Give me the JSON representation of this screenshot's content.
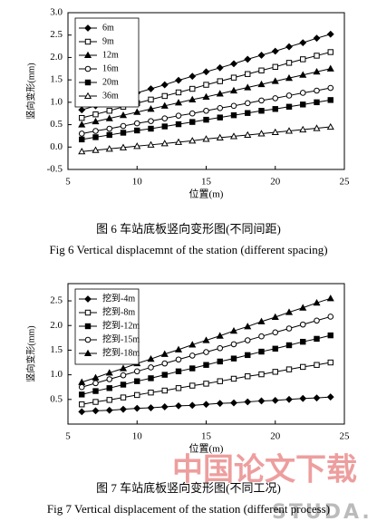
{
  "chart_data": [
    {
      "type": "line",
      "caption": "图 6  车站底板竖向变形图(不同间距)",
      "caption_en": "Fig 6  Vertical displacemnt of the station (different spacing)",
      "x_label": "位置(m)",
      "y_label": "竖向变形(mm)",
      "x": [
        6,
        7,
        8,
        9,
        10,
        11,
        12,
        13,
        14,
        15,
        16,
        17,
        18,
        19,
        20,
        21,
        22,
        23,
        24
      ],
      "xlim": [
        5,
        25
      ],
      "xticks": [
        5,
        10,
        15,
        20,
        25
      ],
      "ylim": [
        -0.5,
        3.0
      ],
      "yticks": [
        {
          "value": -0.5,
          "label": "-0.5"
        },
        {
          "value": 0,
          "label": "0.0"
        },
        {
          "value": 0.5,
          "label": "0.5"
        },
        {
          "value": 1,
          "label": "1.0"
        },
        {
          "value": 1.5,
          "label": "1.5"
        },
        {
          "value": 2,
          "label": "2.0"
        },
        {
          "value": 2.5,
          "label": "2.5"
        },
        {
          "value": 3,
          "label": "3.0"
        }
      ],
      "legend": "upper left",
      "series": [
        {
          "name": "6m",
          "color": "#000000",
          "marker": "diamond",
          "values": [
            0.83,
            0.92,
            1.02,
            1.11,
            1.21,
            1.3,
            1.39,
            1.49,
            1.58,
            1.68,
            1.77,
            1.86,
            1.96,
            2.05,
            2.14,
            2.24,
            2.33,
            2.43,
            2.52
          ]
        },
        {
          "name": "9m",
          "color": "#000000",
          "marker": "square-open",
          "values": [
            0.65,
            0.73,
            0.81,
            0.9,
            0.98,
            1.06,
            1.14,
            1.22,
            1.3,
            1.39,
            1.47,
            1.55,
            1.63,
            1.71,
            1.79,
            1.88,
            1.96,
            2.04,
            2.12
          ]
        },
        {
          "name": "12m",
          "color": "#000000",
          "marker": "triangle",
          "values": [
            0.5,
            0.57,
            0.64,
            0.71,
            0.78,
            0.85,
            0.92,
            0.99,
            1.06,
            1.12,
            1.19,
            1.26,
            1.33,
            1.4,
            1.47,
            1.54,
            1.61,
            1.68,
            1.75
          ]
        },
        {
          "name": "16m",
          "color": "#000000",
          "marker": "circle-open",
          "values": [
            0.3,
            0.36,
            0.41,
            0.47,
            0.53,
            0.58,
            0.64,
            0.7,
            0.75,
            0.81,
            0.87,
            0.92,
            0.98,
            1.04,
            1.09,
            1.15,
            1.21,
            1.26,
            1.32
          ]
        },
        {
          "name": "20m",
          "color": "#000000",
          "marker": "square",
          "values": [
            0.17,
            0.22,
            0.27,
            0.32,
            0.37,
            0.41,
            0.46,
            0.51,
            0.56,
            0.61,
            0.66,
            0.71,
            0.76,
            0.81,
            0.85,
            0.9,
            0.95,
            1.0,
            1.05
          ]
        },
        {
          "name": "36m",
          "color": "#000000",
          "marker": "triangle-open",
          "values": [
            -0.1,
            -0.07,
            -0.04,
            -0.01,
            0.02,
            0.05,
            0.08,
            0.11,
            0.14,
            0.18,
            0.21,
            0.24,
            0.27,
            0.3,
            0.33,
            0.36,
            0.39,
            0.42,
            0.45
          ]
        }
      ]
    },
    {
      "type": "line",
      "caption": "图 7  车站底板竖向变形图(不同工况)",
      "caption_en": "Fig 7  Vertical displacement of the station (different process)",
      "x_label": "位置(m)",
      "y_label": "竖向变形(mm)",
      "x": [
        6,
        7,
        8,
        9,
        10,
        11,
        12,
        13,
        14,
        15,
        16,
        17,
        18,
        19,
        20,
        21,
        22,
        23,
        24
      ],
      "xlim": [
        5,
        25
      ],
      "xticks": [
        5,
        10,
        15,
        20,
        25
      ],
      "ylim": [
        0,
        2.85
      ],
      "yticks": [
        0.5,
        {
          "value": 1,
          "label": "1.0"
        },
        1.5,
        {
          "value": 2,
          "label": "2.0"
        },
        2.5
      ],
      "legend": "upper left",
      "series": [
        {
          "name": "挖到-4m",
          "color": "#000000",
          "marker": "diamond",
          "values": [
            0.25,
            0.27,
            0.28,
            0.3,
            0.32,
            0.33,
            0.35,
            0.37,
            0.38,
            0.4,
            0.42,
            0.43,
            0.45,
            0.47,
            0.48,
            0.5,
            0.52,
            0.53,
            0.55
          ]
        },
        {
          "name": "挖到-8m",
          "color": "#000000",
          "marker": "square-open",
          "values": [
            0.4,
            0.45,
            0.49,
            0.54,
            0.59,
            0.64,
            0.68,
            0.73,
            0.78,
            0.82,
            0.87,
            0.92,
            0.97,
            1.01,
            1.06,
            1.11,
            1.16,
            1.2,
            1.25
          ]
        },
        {
          "name": "挖到-12m",
          "color": "#000000",
          "marker": "square",
          "values": [
            0.6,
            0.67,
            0.73,
            0.8,
            0.87,
            0.93,
            1.0,
            1.07,
            1.13,
            1.2,
            1.27,
            1.33,
            1.4,
            1.47,
            1.53,
            1.6,
            1.67,
            1.73,
            1.8
          ]
        },
        {
          "name": "挖到-15m",
          "color": "#000000",
          "marker": "circle-open",
          "values": [
            0.75,
            0.83,
            0.91,
            0.99,
            1.07,
            1.15,
            1.23,
            1.31,
            1.39,
            1.46,
            1.54,
            1.62,
            1.7,
            1.78,
            1.86,
            1.94,
            2.02,
            2.1,
            2.18
          ]
        },
        {
          "name": "挖到-18m",
          "color": "#000000",
          "marker": "triangle",
          "values": [
            0.85,
            0.94,
            1.04,
            1.13,
            1.23,
            1.32,
            1.42,
            1.51,
            1.61,
            1.7,
            1.79,
            1.89,
            1.98,
            2.08,
            2.17,
            2.27,
            2.36,
            2.46,
            2.55
          ]
        }
      ]
    }
  ],
  "watermark": [
    "中国论文下载",
    "STUDA."
  ]
}
